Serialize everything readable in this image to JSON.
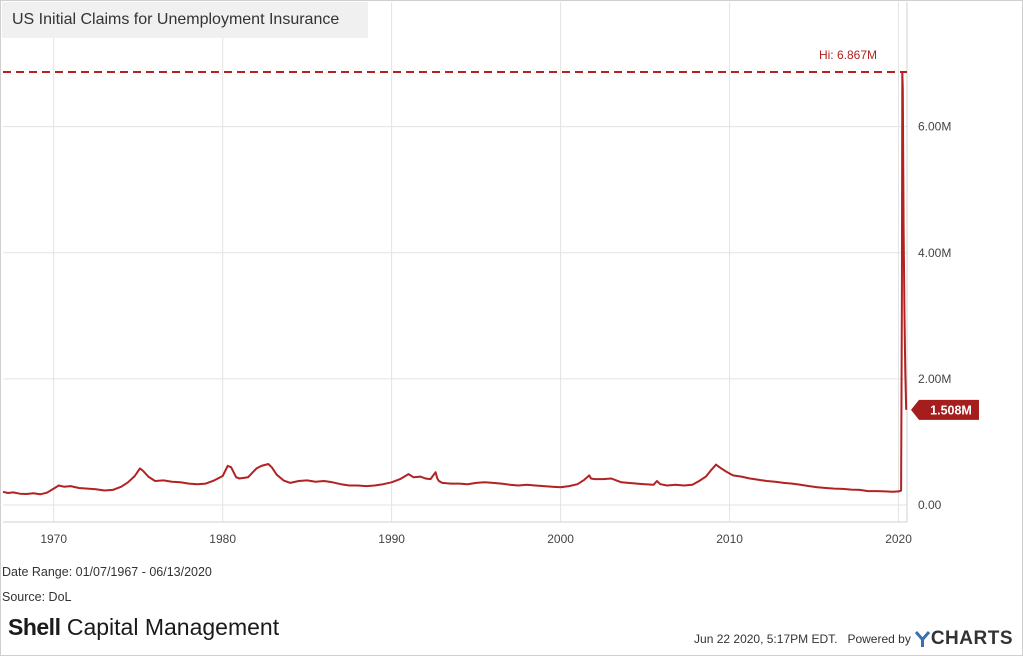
{
  "title": "US Initial Claims for Unemployment Insurance",
  "date_range": "Date Range: 01/07/1967 - 06/13/2020",
  "source": "Source: DoL",
  "brand": {
    "bold": "Shell",
    "rest": " Capital Management"
  },
  "footer": {
    "timestamp": "Jun 22 2020, 5:17PM EDT.",
    "powered_by": "Powered by",
    "logo_text": "CHARTS",
    "logo_icon": "ycharts-y-icon"
  },
  "colors": {
    "series": "#b22222",
    "hi_line": "#b22222",
    "last_badge": "#a51d1d",
    "grid": "#e3e3e3"
  },
  "chart_data": {
    "type": "line",
    "title": "US Initial Claims for Unemployment Insurance",
    "xlabel": "",
    "ylabel": "",
    "x_unit": "year",
    "xlim": [
      1967.0,
      2020.5
    ],
    "ylim": [
      0,
      7200000
    ],
    "x_ticks": [
      1970,
      1980,
      1990,
      2000,
      2010,
      2020
    ],
    "x_tick_labels": [
      "1970",
      "1980",
      "1990",
      "2000",
      "2010",
      "2020"
    ],
    "y_ticks": [
      0,
      2000000,
      4000000,
      6000000
    ],
    "y_tick_labels": [
      "0.00",
      "2.00M",
      "4.00M",
      "6.00M"
    ],
    "grid": true,
    "y_axis_side": "right",
    "reference_line": {
      "label": "Hi: 6.867M",
      "value": 6867000,
      "style": "dashed"
    },
    "last_value": {
      "label": "1.508M",
      "value": 1508000
    },
    "series": [
      {
        "x": [
          1967.0,
          1967.3,
          1967.6,
          1968.0,
          1968.4,
          1968.8,
          1969.2,
          1969.6,
          1970.0,
          1970.3,
          1970.6,
          1971.0,
          1971.5,
          1972.0,
          1972.5,
          1973.0,
          1973.5,
          1974.0,
          1974.4,
          1974.8,
          1975.1,
          1975.3,
          1975.6,
          1976.0,
          1976.5,
          1977.0,
          1977.5,
          1978.0,
          1978.5,
          1979.0,
          1979.5,
          1980.0,
          1980.3,
          1980.5,
          1980.8,
          1981.0,
          1981.5,
          1982.0,
          1982.3,
          1982.7,
          1982.9,
          1983.2,
          1983.6,
          1984.0,
          1984.5,
          1985.0,
          1985.5,
          1986.0,
          1986.5,
          1987.0,
          1987.5,
          1988.0,
          1988.5,
          1989.0,
          1989.5,
          1990.0,
          1990.5,
          1991.0,
          1991.3,
          1991.7,
          1992.0,
          1992.3,
          1992.6,
          1992.7,
          1992.8,
          1993.0,
          1993.5,
          1994.0,
          1994.5,
          1995.0,
          1995.5,
          1996.0,
          1996.5,
          1997.0,
          1997.5,
          1998.0,
          1998.5,
          1999.0,
          1999.5,
          2000.0,
          2000.5,
          2001.0,
          2001.4,
          2001.7,
          2001.8,
          2002.0,
          2002.5,
          2003.0,
          2003.3,
          2003.6,
          2004.0,
          2004.5,
          2005.0,
          2005.5,
          2005.7,
          2005.9,
          2006.3,
          2006.8,
          2007.3,
          2007.8,
          2008.2,
          2008.6,
          2008.9,
          2009.2,
          2009.4,
          2009.8,
          2010.2,
          2010.7,
          2011.2,
          2011.7,
          2012.2,
          2012.7,
          2013.2,
          2013.7,
          2014.2,
          2014.7,
          2015.2,
          2015.7,
          2016.2,
          2016.7,
          2017.2,
          2017.7,
          2018.2,
          2018.7,
          2019.2,
          2019.7,
          2020.0,
          2020.15,
          2020.2,
          2020.22,
          2020.25,
          2020.3,
          2020.35,
          2020.4,
          2020.45
        ],
        "values": [
          210000,
          190000,
          200000,
          180000,
          175000,
          185000,
          170000,
          195000,
          260000,
          310000,
          290000,
          300000,
          270000,
          260000,
          250000,
          230000,
          240000,
          290000,
          360000,
          460000,
          580000,
          540000,
          450000,
          380000,
          390000,
          370000,
          360000,
          340000,
          330000,
          340000,
          390000,
          460000,
          620000,
          600000,
          440000,
          420000,
          440000,
          580000,
          620000,
          650000,
          600000,
          480000,
          390000,
          350000,
          380000,
          390000,
          370000,
          380000,
          360000,
          330000,
          310000,
          310000,
          300000,
          310000,
          330000,
          360000,
          410000,
          490000,
          440000,
          450000,
          420000,
          410000,
          520000,
          420000,
          380000,
          350000,
          340000,
          340000,
          330000,
          350000,
          360000,
          350000,
          340000,
          320000,
          310000,
          320000,
          310000,
          300000,
          290000,
          280000,
          300000,
          330000,
          400000,
          470000,
          420000,
          410000,
          410000,
          420000,
          390000,
          360000,
          350000,
          340000,
          330000,
          320000,
          380000,
          330000,
          310000,
          320000,
          310000,
          320000,
          380000,
          450000,
          550000,
          640000,
          600000,
          530000,
          470000,
          450000,
          420000,
          400000,
          380000,
          370000,
          350000,
          340000,
          320000,
          300000,
          280000,
          270000,
          260000,
          255000,
          245000,
          240000,
          220000,
          220000,
          215000,
          210000,
          215000,
          230000,
          3300000,
          6867000,
          6600000,
          4400000,
          3000000,
          2100000,
          1508000
        ]
      }
    ]
  }
}
